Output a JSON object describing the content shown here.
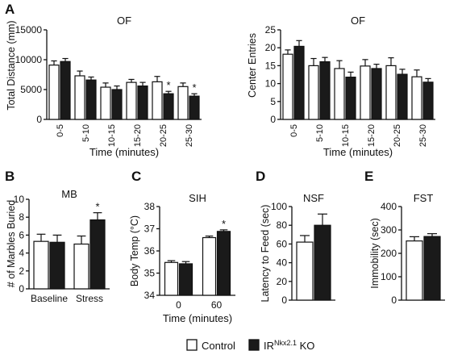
{
  "colors": {
    "control_fill": "#ffffff",
    "ko_fill": "#1a1a1a",
    "stroke": "#111111"
  },
  "legend": {
    "control_label": "Control",
    "ko_label_prefix": "IR",
    "ko_label_sup": "Nkx2.1",
    "ko_label_suffix": " KO"
  },
  "chart_data": [
    {
      "id": "of_distance",
      "panel": "A",
      "type": "bar",
      "title": "OF",
      "xlabel": "Time (minutes)",
      "ylabel": "Total Distance (mm)",
      "ylim": [
        0,
        15000
      ],
      "yticks": [
        0,
        5000,
        10000,
        15000
      ],
      "categories": [
        "0-5",
        "5-10",
        "10-15",
        "15-20",
        "20-25",
        "25-30"
      ],
      "series": [
        {
          "values": [
            9100,
            7300,
            5400,
            6200,
            6300,
            5500
          ],
          "errors": [
            700,
            800,
            700,
            500,
            900,
            600
          ]
        },
        {
          "values": [
            9700,
            6600,
            5000,
            5600,
            4300,
            3900
          ],
          "errors": [
            500,
            500,
            600,
            600,
            400,
            400
          ]
        }
      ],
      "significance": [
        "",
        "",
        "",
        "",
        "*",
        "*"
      ]
    },
    {
      "id": "of_center",
      "panel": "",
      "type": "bar",
      "title": "OF",
      "xlabel": "Time (minutes)",
      "ylabel": "Center Entries",
      "ylim": [
        0,
        25
      ],
      "yticks": [
        0,
        5,
        10,
        15,
        20,
        25
      ],
      "categories": [
        "0-5",
        "5-10",
        "10-15",
        "15-20",
        "20-25",
        "25-30"
      ],
      "series": [
        {
          "values": [
            18.2,
            15.0,
            14.2,
            14.9,
            15.0,
            11.9
          ],
          "errors": [
            1.2,
            2.0,
            2.2,
            1.8,
            2.2,
            1.9
          ]
        },
        {
          "values": [
            20.4,
            16.1,
            11.8,
            14.2,
            12.6,
            10.4
          ],
          "errors": [
            1.6,
            1.2,
            1.4,
            1.2,
            1.4,
            1.0
          ]
        }
      ],
      "significance": [
        "",
        "",
        "",
        "",
        "",
        ""
      ]
    },
    {
      "id": "mb",
      "panel": "B",
      "type": "bar",
      "title": "MB",
      "xlabel": "",
      "ylabel": "# of Marbles Buried",
      "ylim": [
        0,
        10
      ],
      "yticks": [
        0,
        2,
        4,
        6,
        8,
        10
      ],
      "categories": [
        "Baseline",
        "Stress"
      ],
      "series": [
        {
          "values": [
            5.3,
            5.0
          ],
          "errors": [
            0.8,
            0.9
          ]
        },
        {
          "values": [
            5.2,
            7.7
          ],
          "errors": [
            0.8,
            0.8
          ]
        }
      ],
      "significance": [
        "",
        "*"
      ]
    },
    {
      "id": "sih",
      "panel": "C",
      "type": "bar",
      "title": "SIH",
      "xlabel": "Time (minutes)",
      "ylabel": "Body Temp (°C)",
      "ylim": [
        34,
        38
      ],
      "yticks": [
        34,
        35,
        36,
        37,
        38
      ],
      "categories": [
        "0",
        "60"
      ],
      "series": [
        {
          "values": [
            35.48,
            36.6
          ],
          "errors": [
            0.08,
            0.07
          ]
        },
        {
          "values": [
            35.42,
            36.88
          ],
          "errors": [
            0.1,
            0.07
          ]
        }
      ],
      "significance": [
        "",
        "*"
      ]
    },
    {
      "id": "nsf",
      "panel": "D",
      "type": "bar",
      "title": "NSF",
      "xlabel": "",
      "ylabel": "Latency to Feed (sec)",
      "ylim": [
        0,
        100
      ],
      "yticks": [
        0,
        20,
        40,
        60,
        80,
        100
      ],
      "categories": [
        ""
      ],
      "series": [
        {
          "values": [
            62
          ],
          "errors": [
            7
          ]
        },
        {
          "values": [
            80
          ],
          "errors": [
            12
          ]
        }
      ],
      "significance": [
        ""
      ]
    },
    {
      "id": "fst",
      "panel": "E",
      "type": "bar",
      "title": "FST",
      "xlabel": "",
      "ylabel": "Immobility (sec)",
      "ylim": [
        0,
        400
      ],
      "yticks": [
        0,
        100,
        200,
        300,
        400
      ],
      "categories": [
        ""
      ],
      "series": [
        {
          "values": [
            253
          ],
          "errors": [
            18
          ]
        },
        {
          "values": [
            272
          ],
          "errors": [
            12
          ]
        }
      ],
      "significance": [
        ""
      ]
    }
  ]
}
